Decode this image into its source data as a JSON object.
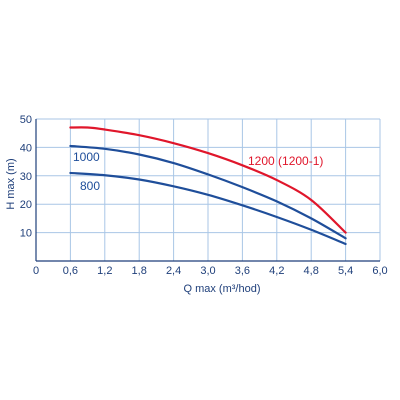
{
  "chart_data": {
    "type": "line",
    "xlabel": "Q max (m³/hod)",
    "ylabel": "H max (m)",
    "xlim": [
      0,
      6.0
    ],
    "ylim": [
      0,
      50
    ],
    "x_ticks": [
      "0",
      "0,6",
      "1,2",
      "1,8",
      "2,4",
      "3,0",
      "3,6",
      "4,2",
      "4,8",
      "5,4",
      "6,0"
    ],
    "y_ticks": [
      "10",
      "20",
      "30",
      "40",
      "50"
    ],
    "grid": true,
    "series": [
      {
        "name": "1200 (1200-1)",
        "color": "#e0162b",
        "points": [
          [
            0.6,
            47
          ],
          [
            0.9,
            47
          ],
          [
            1.2,
            46.3
          ],
          [
            1.8,
            44.3
          ],
          [
            2.4,
            41.5
          ],
          [
            3.0,
            38
          ],
          [
            3.6,
            33.7
          ],
          [
            4.2,
            28.5
          ],
          [
            4.8,
            21.5
          ],
          [
            5.4,
            10
          ]
        ]
      },
      {
        "name": "1000",
        "color": "#1f4e9a",
        "points": [
          [
            0.6,
            40.5
          ],
          [
            1.2,
            39.5
          ],
          [
            1.8,
            37.5
          ],
          [
            2.4,
            34.5
          ],
          [
            3.0,
            30.5
          ],
          [
            3.6,
            26
          ],
          [
            4.2,
            21
          ],
          [
            4.8,
            15
          ],
          [
            5.4,
            8
          ]
        ]
      },
      {
        "name": "800",
        "color": "#1f4e9a",
        "points": [
          [
            0.6,
            31
          ],
          [
            1.2,
            30.2
          ],
          [
            1.8,
            28.7
          ],
          [
            2.4,
            26.3
          ],
          [
            3.0,
            23.3
          ],
          [
            3.6,
            19.6
          ],
          [
            4.2,
            15.5
          ],
          [
            4.8,
            11
          ],
          [
            5.4,
            6
          ]
        ]
      }
    ]
  },
  "colors": {
    "axis": "#1f3f7a",
    "grid": "#a9c6e6"
  }
}
